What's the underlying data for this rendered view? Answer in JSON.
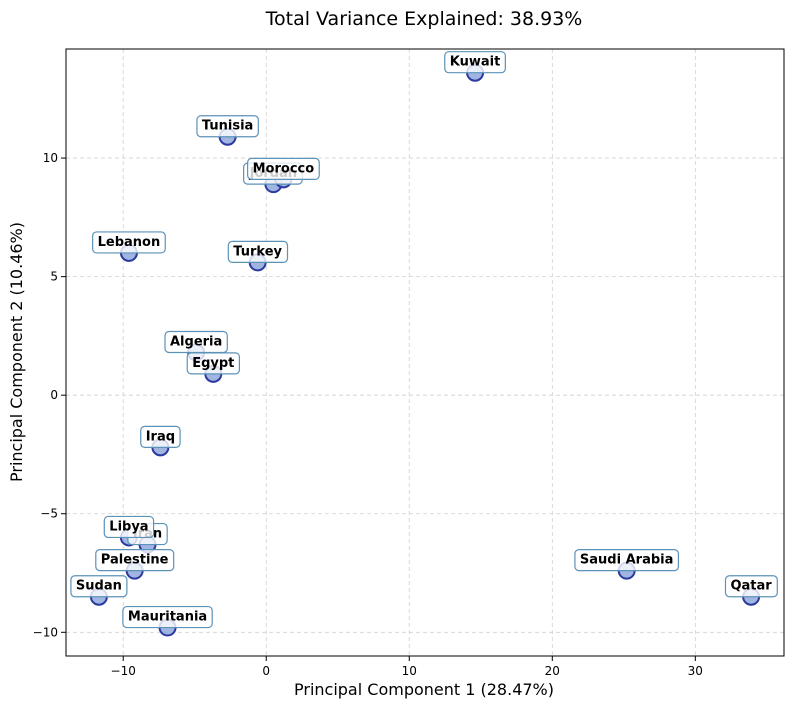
{
  "chart_data": {
    "type": "scatter",
    "title": "Total Variance Explained: 38.93%",
    "xlabel": "Principal Component 1 (28.47%)",
    "ylabel": "Principal Component 2 (10.46%)",
    "xlim": [
      -14,
      36.2
    ],
    "ylim": [
      -11,
      14.6
    ],
    "xticks": [
      -10,
      0,
      10,
      20,
      30
    ],
    "yticks": [
      -10,
      -5,
      0,
      5,
      10
    ],
    "xtick_labels": [
      "−10",
      "0",
      "10",
      "20",
      "30"
    ],
    "ytick_labels": [
      "−10",
      "−5",
      "0",
      "5",
      "10"
    ],
    "grid": true,
    "marker_fill": "#8fa8dc",
    "marker_edge": "#2b3a9e",
    "label_box_edge": "#5b92b8",
    "points": [
      {
        "label": "Kuwait",
        "x": 14.6,
        "y": 13.6
      },
      {
        "label": "Tunisia",
        "x": -2.7,
        "y": 10.9
      },
      {
        "label": "Jordan",
        "x": 0.5,
        "y": 8.9
      },
      {
        "label": "Morocco",
        "x": 1.2,
        "y": 9.1
      },
      {
        "label": "Lebanon",
        "x": -9.6,
        "y": 6.0
      },
      {
        "label": "Turkey",
        "x": -0.6,
        "y": 5.6
      },
      {
        "label": "Algeria",
        "x": -4.9,
        "y": 1.8
      },
      {
        "label": "Egypt",
        "x": -3.7,
        "y": 0.9
      },
      {
        "label": "Iraq",
        "x": -7.4,
        "y": -2.2
      },
      {
        "label": "Iran",
        "x": -8.3,
        "y": -6.3
      },
      {
        "label": "Libya",
        "x": -9.6,
        "y": -6.0
      },
      {
        "label": "Palestine",
        "x": -9.2,
        "y": -7.4
      },
      {
        "label": "Sudan",
        "x": -11.7,
        "y": -8.5
      },
      {
        "label": "Mauritania",
        "x": -6.9,
        "y": -9.8
      },
      {
        "label": "Saudi Arabia",
        "x": 25.2,
        "y": -7.4
      },
      {
        "label": "Qatar",
        "x": 33.9,
        "y": -8.5
      }
    ]
  }
}
